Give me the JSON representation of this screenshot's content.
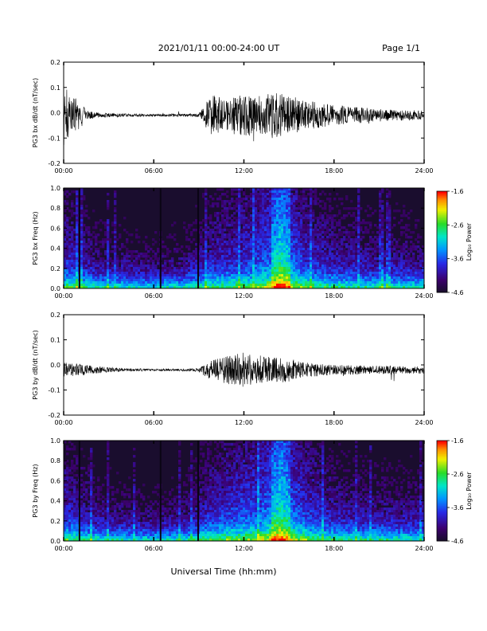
{
  "header": {
    "title": "2021/01/11  00:00-24:00 UT",
    "page": "Page 1/1"
  },
  "x_axis_title": "Universal Time (hh:mm)",
  "x_tick_labels": [
    "00:00",
    "06:00",
    "12:00",
    "18:00",
    "24:00"
  ],
  "colorbar": {
    "label": "Log₁₀ Power",
    "ticks": [
      "-1.6",
      "-2.6",
      "-3.6",
      "-4.6"
    ],
    "range": [
      -4.6,
      -1.6
    ]
  },
  "colors": {
    "trace": "#000000",
    "spectrogram_background": "#1a0d2e"
  },
  "chart_data": [
    {
      "type": "line",
      "title": "",
      "ylabel": "PG3 bx dB/dt (nT/sec)",
      "xlabel": "",
      "xlim": [
        0,
        24
      ],
      "ylim": [
        -0.2,
        0.2
      ],
      "yticks": [
        "0.2",
        "0.1",
        "0.0",
        "-0.1",
        "-0.2"
      ],
      "activity_profile": {
        "hours": [
          0,
          0.5,
          1,
          1.5,
          2,
          3,
          4,
          6,
          8,
          9,
          9.8,
          10.5,
          12,
          13,
          14,
          15,
          16,
          17,
          18,
          20,
          22,
          24
        ],
        "amplitude": [
          0.12,
          0.08,
          0.06,
          0.02,
          0.012,
          0.008,
          0.006,
          0.005,
          0.006,
          0.007,
          0.08,
          0.07,
          0.08,
          0.09,
          0.09,
          0.08,
          0.06,
          0.05,
          0.04,
          0.03,
          0.02,
          0.02
        ]
      },
      "baseline": -0.01
    },
    {
      "type": "heatmap",
      "title": "",
      "ylabel": "PG3 bx Freq (Hz)",
      "xlabel": "",
      "xlim": [
        0,
        24
      ],
      "ylim": [
        0,
        1.0
      ],
      "yticks": [
        "1.0",
        "0.8",
        "0.6",
        "0.4",
        "0.2",
        "0.0"
      ],
      "peak_hour": 14.5,
      "activity_profile": {
        "hours": [
          0,
          1,
          2,
          4,
          6,
          8,
          9.8,
          12,
          13,
          14,
          14.5,
          15,
          16,
          18,
          20,
          24
        ],
        "intensity": [
          0.55,
          0.5,
          0.35,
          0.3,
          0.25,
          0.3,
          0.5,
          0.6,
          0.7,
          0.85,
          1.0,
          0.85,
          0.6,
          0.45,
          0.4,
          0.35
        ]
      }
    },
    {
      "type": "line",
      "title": "",
      "ylabel": "PG3 by dB/dt (nT/sec)",
      "xlabel": "",
      "xlim": [
        0,
        24
      ],
      "ylim": [
        -0.2,
        0.2
      ],
      "yticks": [
        "0.2",
        "0.1",
        "0.0",
        "-0.1",
        "-0.2"
      ],
      "activity_profile": {
        "hours": [
          0,
          1,
          2,
          3,
          4,
          6,
          8,
          9,
          9.5,
          10.5,
          12,
          13,
          14,
          15,
          16,
          18,
          20,
          22,
          24
        ],
        "amplitude": [
          0.03,
          0.025,
          0.015,
          0.01,
          0.006,
          0.004,
          0.005,
          0.007,
          0.03,
          0.05,
          0.07,
          0.06,
          0.05,
          0.05,
          0.03,
          0.02,
          0.018,
          0.016,
          0.015
        ]
      },
      "baseline": -0.02
    },
    {
      "type": "heatmap",
      "title": "",
      "ylabel": "PG3 by Freq (Hz)",
      "xlabel": "",
      "xlim": [
        0,
        24
      ],
      "ylim": [
        0,
        1.0
      ],
      "yticks": [
        "1.0",
        "0.8",
        "0.6",
        "0.4",
        "0.2",
        "0.0"
      ],
      "peak_hour": 14.5,
      "activity_profile": {
        "hours": [
          0,
          1,
          2,
          4,
          6,
          8,
          9.8,
          12,
          13,
          14,
          14.5,
          15,
          16,
          18,
          20,
          24
        ],
        "intensity": [
          0.55,
          0.5,
          0.35,
          0.3,
          0.25,
          0.3,
          0.55,
          0.7,
          0.75,
          0.9,
          1.0,
          0.85,
          0.65,
          0.45,
          0.4,
          0.35
        ]
      }
    }
  ]
}
